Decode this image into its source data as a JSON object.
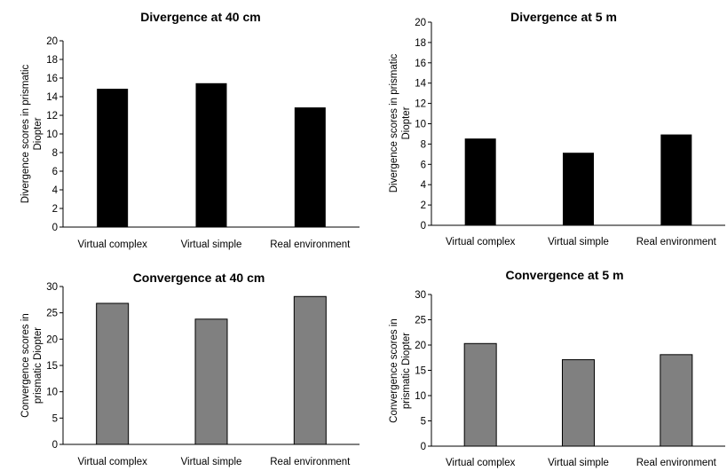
{
  "chart_data": [
    {
      "type": "bar",
      "title": "Divergence at 40 cm",
      "ylabel": [
        "Divergence  scores in prismatic",
        "Diopter"
      ],
      "categories": [
        "Virtual complex",
        "Virtual simple",
        "Real environment"
      ],
      "values": [
        14.8,
        15.4,
        12.8
      ],
      "ylim": [
        0,
        20
      ],
      "yticks": [
        0,
        2,
        4,
        6,
        8,
        10,
        12,
        14,
        16,
        18,
        20
      ],
      "bar_color": "#000000",
      "grid": false
    },
    {
      "type": "bar",
      "title": "Divergence at 5 m",
      "ylabel": [
        "Divergence  scores in prismatic",
        "Diopter"
      ],
      "categories": [
        "Virtual complex",
        "Virtual simple",
        "Real environment"
      ],
      "values": [
        8.5,
        7.1,
        8.9
      ],
      "ylim": [
        0,
        20
      ],
      "yticks": [
        0,
        2,
        4,
        6,
        8,
        10,
        12,
        14,
        16,
        18,
        20
      ],
      "bar_color": "#000000",
      "grid": false
    },
    {
      "type": "bar",
      "title": "Convergence at 40 cm",
      "ylabel": [
        "Convergence  scores in",
        "prismatic Diopter"
      ],
      "categories": [
        "Virtual complex",
        "Virtual simple",
        "Real environment"
      ],
      "values": [
        26.8,
        23.8,
        28.1
      ],
      "ylim": [
        0,
        30
      ],
      "yticks": [
        0,
        5,
        10,
        15,
        20,
        25,
        30
      ],
      "bar_color": "#808080",
      "grid": false
    },
    {
      "type": "bar",
      "title": "Convergence at 5 m",
      "ylabel": [
        "Convergence  scores in",
        "prismatic Diopter"
      ],
      "categories": [
        "Virtual complex",
        "Virtual simple",
        "Real environment"
      ],
      "values": [
        20.3,
        17.1,
        18.1
      ],
      "ylim": [
        0,
        30
      ],
      "yticks": [
        0,
        5,
        10,
        15,
        20,
        25,
        30
      ],
      "bar_color": "#808080",
      "grid": false
    }
  ]
}
